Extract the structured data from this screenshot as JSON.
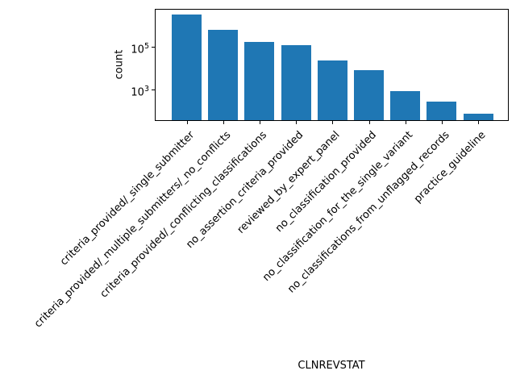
{
  "figure": {
    "background": "#ffffff"
  },
  "chart_data": {
    "type": "bar",
    "title": "",
    "xlabel": "CLNREVSTAT",
    "ylabel": "count",
    "yscale": "log",
    "grid": false,
    "legend": false,
    "bar_color": "#1f77b4",
    "axis_color": "#000000",
    "text_color": "#000000",
    "categories": [
      "criteria_provided/_single_submitter",
      "criteria_provided/_multiple_submitters/_no_conflicts",
      "criteria_provided/_conflicting_classifications",
      "no_assertion_criteria_provided",
      "reviewed_by_expert_panel",
      "no_classification_provided",
      "no_classification_for_the_single_variant",
      "no_classifications_from_unflagged_records",
      "practice_guideline"
    ],
    "values": [
      2900000,
      570000,
      160000,
      110000,
      22000,
      7800,
      850,
      280,
      80
    ],
    "ylim": [
      40,
      4900000
    ],
    "yticks": [
      {
        "value": 100000,
        "base": "10",
        "exponent": "5"
      },
      {
        "value": 1000,
        "base": "10",
        "exponent": "3"
      }
    ]
  }
}
